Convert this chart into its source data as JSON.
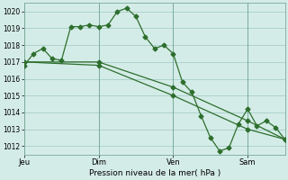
{
  "background_color": "#d4ece7",
  "grid_color": "#a8cdc8",
  "line_color": "#2d6e2d",
  "marker_color": "#2d6e2d",
  "xlabel_text": "Pression niveau de la mer( hPa )",
  "ylim": [
    1011.5,
    1020.5
  ],
  "yticks": [
    1012,
    1013,
    1014,
    1015,
    1016,
    1017,
    1018,
    1019,
    1020
  ],
  "xlim": [
    0,
    168
  ],
  "xtick_positions": [
    0,
    48,
    96,
    144
  ],
  "xtick_labels": [
    "Jeu",
    "Dim",
    "Ven",
    "Sam"
  ],
  "vline_positions": [
    0,
    48,
    96,
    144
  ],
  "series1": [
    [
      0,
      1016.8
    ],
    [
      6,
      1017.5
    ],
    [
      12,
      1017.8
    ],
    [
      18,
      1017.2
    ],
    [
      24,
      1017.1
    ],
    [
      30,
      1019.1
    ],
    [
      36,
      1019.1
    ],
    [
      42,
      1019.2
    ],
    [
      48,
      1019.1
    ],
    [
      54,
      1019.2
    ],
    [
      60,
      1020.0
    ],
    [
      66,
      1020.2
    ],
    [
      72,
      1019.7
    ],
    [
      78,
      1018.5
    ],
    [
      84,
      1017.8
    ],
    [
      90,
      1018.0
    ],
    [
      96,
      1017.5
    ],
    [
      102,
      1015.8
    ],
    [
      108,
      1015.2
    ],
    [
      114,
      1013.8
    ],
    [
      120,
      1012.5
    ],
    [
      126,
      1011.7
    ],
    [
      132,
      1011.9
    ],
    [
      138,
      1013.3
    ],
    [
      144,
      1014.2
    ],
    [
      150,
      1013.2
    ],
    [
      156,
      1013.5
    ],
    [
      162,
      1013.1
    ],
    [
      168,
      1012.4
    ]
  ],
  "series2": [
    [
      0,
      1017.0
    ],
    [
      48,
      1017.0
    ],
    [
      96,
      1015.5
    ],
    [
      144,
      1013.5
    ],
    [
      168,
      1012.4
    ]
  ],
  "series3": [
    [
      0,
      1017.0
    ],
    [
      48,
      1016.8
    ],
    [
      96,
      1015.0
    ],
    [
      144,
      1013.0
    ],
    [
      168,
      1012.4
    ]
  ]
}
